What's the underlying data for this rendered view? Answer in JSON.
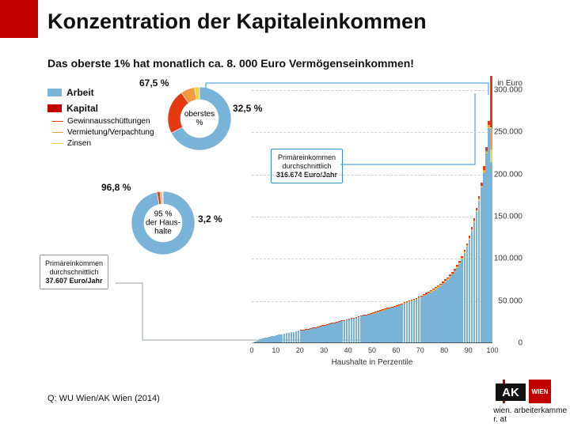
{
  "title": "Konzentration der Kapitaleinkommen",
  "subtitle": "Das oberste 1% hat monatlich ca. 8. 000 Euro Vermögenseinkommen!",
  "source": "Q: WU Wien/AK Wien (2014)",
  "footer_url_1": "wien. arbeiterkamme",
  "footer_url_2": "r. at",
  "logo": {
    "text": "AK",
    "flag": "WIEN"
  },
  "legend": {
    "arbeit": {
      "label": "Arbeit",
      "color": "#79b3d8"
    },
    "kapital": {
      "label": "Kapital",
      "color": "#c10000"
    },
    "sub": [
      {
        "label": "Gewinnausschüttungen",
        "color": "#e53912"
      },
      {
        "label": "Vermietung/Verpachtung",
        "color": "#f39a3c"
      },
      {
        "label": "Zinsen",
        "color": "#f4d24a"
      }
    ]
  },
  "bar_chart": {
    "y_title": "in Euro",
    "x_title": "Haushalte in Perzentile",
    "ylim": [
      0,
      300000
    ],
    "ytick_step": 50000,
    "yticks": [
      "0",
      "50.000",
      "100.000",
      "150.000",
      "200.000",
      "250.000",
      "300.000"
    ],
    "xticks": [
      0,
      10,
      20,
      30,
      40,
      50,
      60,
      70,
      80,
      90,
      100
    ],
    "n_bars": 100,
    "bar_color_arbeit": "#79b3d8",
    "bar_color_kapital_layers": [
      "#f4d24a",
      "#f39a3c",
      "#e53912"
    ],
    "background_color": "#ffffff",
    "grid_color": "#d0d0d0",
    "arbeit_pct_default": 0.968,
    "arbeit_pct_top": 0.675,
    "approx_totals_euro": [
      500,
      1500,
      2800,
      4000,
      5000,
      5800,
      6500,
      7200,
      7900,
      8500,
      9100,
      9800,
      10400,
      11000,
      11600,
      12200,
      12800,
      13400,
      14000,
      14600,
      15200,
      15800,
      16400,
      17000,
      17600,
      18200,
      18900,
      19600,
      20300,
      21000,
      21700,
      22400,
      23100,
      23800,
      24500,
      25200,
      25900,
      26600,
      27300,
      28000,
      28700,
      29400,
      30100,
      30800,
      31600,
      32400,
      33200,
      34000,
      34800,
      35600,
      36400,
      37200,
      38000,
      38800,
      39600,
      40500,
      41400,
      42300,
      43200,
      44100,
      45000,
      46000,
      47000,
      48000,
      49000,
      50100,
      51200,
      52300,
      53500,
      54800,
      56200,
      57600,
      59100,
      60700,
      62400,
      64200,
      66100,
      68100,
      70200,
      72500,
      75000,
      77700,
      80700,
      84000,
      87700,
      92000,
      97000,
      103000,
      110000,
      118000,
      127000,
      137000,
      148000,
      160000,
      174000,
      190000,
      209000,
      232000,
      263000,
      316674
    ],
    "kapital_split": {
      "gewinn": 0.6,
      "vermietung": 0.25,
      "zinsen": 0.15
    }
  },
  "donut_top": {
    "title": "oberstes\n%",
    "cx_in_chart": 192,
    "cy_in_chart": 50,
    "r_outer": 40,
    "r_inner": 24,
    "arbeit_pct": 67.5,
    "segments": [
      {
        "label": "67,5 %",
        "pct": 67.5,
        "color": "#79b3d8"
      },
      {
        "label": "32,5 %",
        "pct": 32.5,
        "color_layers": [
          "#e53912",
          "#f39a3c",
          "#f4d24a"
        ],
        "split": [
          0.7,
          0.22,
          0.08
        ]
      }
    ],
    "label_left": "67,5 %",
    "label_right": "32,5 %",
    "callout": {
      "lines": [
        "Primäreinkommen",
        "durchschnittlich",
        "316.674 Euro/Jahr"
      ],
      "border_color": "#2c92cf"
    }
  },
  "donut_bottom": {
    "title": "95 %\nder Haus-\nhalte",
    "cx_in_chart": 146,
    "cy_in_chart": 182,
    "r_outer": 40,
    "r_inner": 24,
    "arbeit_pct": 96.8,
    "segments": [
      {
        "label": "96,8 %",
        "pct": 96.8,
        "color": "#79b3d8"
      },
      {
        "label": "3,2 %",
        "pct": 3.2,
        "color_layers": [
          "#e53912",
          "#f39a3c",
          "#f4d24a"
        ],
        "split": [
          0.5,
          0.3,
          0.2
        ]
      }
    ],
    "label_left": "96,8 %",
    "label_right": "3,2 %",
    "callout": {
      "lines": [
        "Primäreinkommen",
        "durchschnittlich",
        "37.607 Euro/Jahr"
      ],
      "border_color": "#999999"
    }
  }
}
